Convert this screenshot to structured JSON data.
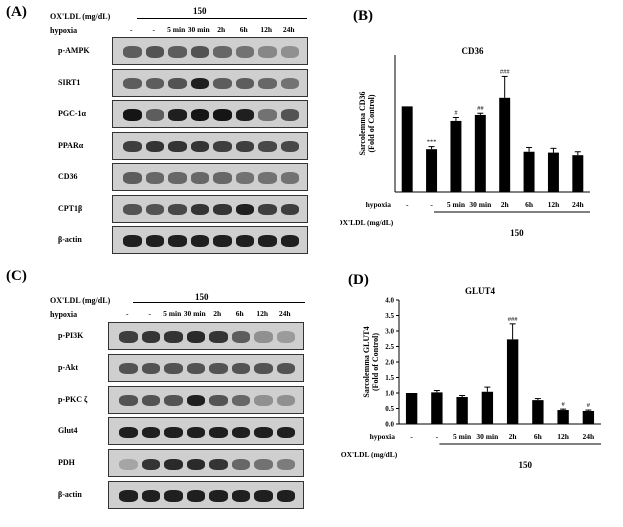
{
  "panels": {
    "A": {
      "letter": "(A)",
      "oxldl_label": "OX'LDL (mg/dL)",
      "hypoxia_label": "hypoxia",
      "dose": "150",
      "conditions": [
        "-",
        "-",
        "5 min",
        "30 min",
        "2h",
        "6h",
        "12h",
        "24h"
      ],
      "bands": [
        {
          "label": "p-AMPK",
          "intensity": [
            0.55,
            0.6,
            0.55,
            0.6,
            0.5,
            0.45,
            0.35,
            0.3
          ]
        },
        {
          "label": "SIRT1",
          "intensity": [
            0.55,
            0.55,
            0.6,
            0.85,
            0.55,
            0.55,
            0.5,
            0.45
          ]
        },
        {
          "label": "PGC-1α",
          "intensity": [
            0.9,
            0.55,
            0.85,
            0.9,
            0.9,
            0.85,
            0.45,
            0.6
          ]
        },
        {
          "label": "PPARα",
          "intensity": [
            0.7,
            0.75,
            0.75,
            0.75,
            0.7,
            0.7,
            0.65,
            0.65
          ]
        },
        {
          "label": "CD36",
          "intensity": [
            0.55,
            0.5,
            0.5,
            0.5,
            0.5,
            0.45,
            0.45,
            0.45
          ]
        },
        {
          "label": "CPT1β",
          "intensity": [
            0.6,
            0.6,
            0.65,
            0.75,
            0.75,
            0.85,
            0.7,
            0.7
          ]
        },
        {
          "label": "β-actin",
          "intensity": [
            0.85,
            0.85,
            0.85,
            0.85,
            0.85,
            0.85,
            0.85,
            0.85
          ]
        }
      ]
    },
    "B": {
      "letter": "(B)",
      "hypoxia_label": "hypoxia",
      "oxldl_label": "OX'LDL (mg/dL)",
      "dose": "150"
    },
    "C": {
      "letter": "(C)",
      "oxldl_label": "OX'LDL (mg/dL)",
      "hypoxia_label": "hypoxia",
      "dose": "150",
      "conditions": [
        "-",
        "-",
        "5 min",
        "30 min",
        "2h",
        "6h",
        "12h",
        "24h"
      ],
      "bands": [
        {
          "label": "p-PI3K",
          "intensity": [
            0.7,
            0.75,
            0.75,
            0.8,
            0.75,
            0.55,
            0.3,
            0.25
          ]
        },
        {
          "label": "p-Akt",
          "intensity": [
            0.6,
            0.6,
            0.6,
            0.6,
            0.6,
            0.6,
            0.6,
            0.6
          ]
        },
        {
          "label": "p-PKC ζ",
          "intensity": [
            0.6,
            0.6,
            0.6,
            0.85,
            0.6,
            0.5,
            0.3,
            0.3
          ]
        },
        {
          "label": "Glut4",
          "intensity": [
            0.85,
            0.85,
            0.85,
            0.85,
            0.85,
            0.85,
            0.85,
            0.85
          ]
        },
        {
          "label": "PDH",
          "intensity": [
            0.2,
            0.75,
            0.8,
            0.8,
            0.75,
            0.5,
            0.45,
            0.4
          ]
        },
        {
          "label": "β-actin",
          "intensity": [
            0.85,
            0.85,
            0.85,
            0.85,
            0.85,
            0.85,
            0.85,
            0.85
          ]
        }
      ]
    },
    "D": {
      "letter": "(D)",
      "hypoxia_label": "hypoxia",
      "oxldl_label": "OX'LDL (mg/dL)",
      "dose": "150"
    }
  },
  "chart_data": [
    {
      "type": "bar",
      "title": "CD36",
      "ylabel": "Sarcolemma CD36 (Fold of Control)",
      "categories": [
        "-",
        "-",
        "5 min",
        "30 min",
        "2h",
        "6h",
        "12h",
        "24h"
      ],
      "values": [
        1.0,
        0.5,
        0.83,
        0.9,
        1.1,
        0.47,
        0.46,
        0.43
      ],
      "errors": [
        0.0,
        0.03,
        0.04,
        0.02,
        0.25,
        0.05,
        0.05,
        0.04
      ],
      "annotations": [
        "",
        "***",
        "#",
        "##",
        "###",
        "",
        "",
        ""
      ],
      "ylim": [
        0,
        1.6
      ]
    },
    {
      "type": "bar",
      "title": "GLUT4",
      "ylabel": "Sarcolemma GLUT4 (Fold of Control)",
      "categories": [
        "-",
        "-",
        "5 min",
        "30 min",
        "2h",
        "6h",
        "12h",
        "24h"
      ],
      "values": [
        1.0,
        1.02,
        0.87,
        1.04,
        2.73,
        0.77,
        0.45,
        0.42
      ],
      "errors": [
        0.0,
        0.06,
        0.05,
        0.15,
        0.5,
        0.05,
        0.03,
        0.03
      ],
      "annotations": [
        "",
        "",
        "",
        "",
        "###",
        "",
        "#",
        "#"
      ],
      "ylim": [
        0,
        4.0
      ],
      "yticks": [
        "0.0",
        "0.5",
        "1.0",
        "1.5",
        "2.0",
        "2.5",
        "3.0",
        "3.5",
        "4.0"
      ]
    }
  ]
}
